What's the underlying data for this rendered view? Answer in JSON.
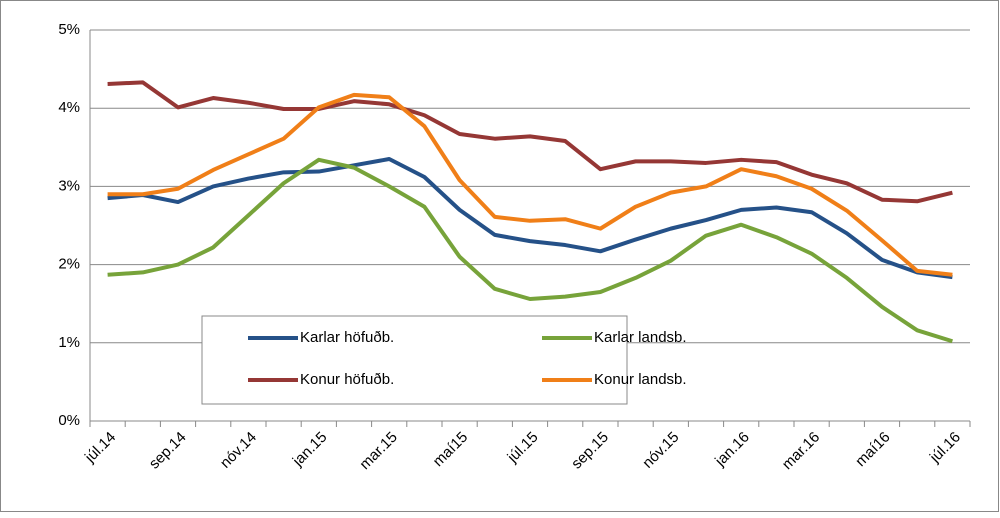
{
  "chart_data": {
    "type": "line",
    "categories": [
      "júl.14",
      null,
      "sep.14",
      null,
      "nóv.14",
      null,
      "jan.15",
      null,
      "mar.15",
      null,
      "maí15",
      null,
      "júl.15",
      null,
      "sep.15",
      null,
      "nóv.15",
      null,
      "jan.16",
      null,
      "mar.16",
      null,
      "maí16",
      null,
      "júl.16"
    ],
    "series": [
      {
        "name": "Karlar höfuðb.",
        "color": "#255188",
        "values": [
          2.85,
          2.89,
          2.8,
          3.0,
          3.1,
          3.18,
          3.19,
          3.27,
          3.35,
          3.12,
          2.7,
          2.38,
          2.3,
          2.25,
          2.17,
          2.32,
          2.46,
          2.57,
          2.7,
          2.73,
          2.67,
          2.4,
          2.06,
          1.9,
          1.84
        ]
      },
      {
        "name": "Karlar landsb.",
        "color": "#77a33a",
        "values": [
          1.87,
          1.9,
          2.0,
          2.22,
          2.63,
          3.04,
          3.34,
          3.24,
          3.0,
          2.74,
          2.1,
          1.69,
          1.56,
          1.59,
          1.65,
          1.83,
          2.05,
          2.37,
          2.51,
          2.35,
          2.14,
          1.83,
          1.46,
          1.16,
          1.02
        ]
      },
      {
        "name": "Konur höfuðb.",
        "color": "#953735",
        "values": [
          4.31,
          4.33,
          4.01,
          4.13,
          4.07,
          3.99,
          3.99,
          4.09,
          4.05,
          3.91,
          3.67,
          3.61,
          3.64,
          3.58,
          3.22,
          3.32,
          3.32,
          3.3,
          3.34,
          3.31,
          3.15,
          3.04,
          2.83,
          2.81,
          2.92
        ]
      },
      {
        "name": "Konur landsb.",
        "color": "#f07f18",
        "values": [
          2.9,
          2.9,
          2.97,
          3.21,
          3.41,
          3.61,
          4.01,
          4.17,
          4.14,
          3.77,
          3.08,
          2.61,
          2.56,
          2.58,
          2.46,
          2.74,
          2.92,
          3.0,
          3.22,
          3.13,
          2.97,
          2.69,
          2.31,
          1.92,
          1.87
        ]
      }
    ],
    "ylim": [
      0,
      5
    ],
    "yticks": [
      {
        "value": 0,
        "label": "0%"
      },
      {
        "value": 1,
        "label": "1%"
      },
      {
        "value": 2,
        "label": "2%"
      },
      {
        "value": 3,
        "label": "3%"
      },
      {
        "value": 4,
        "label": "4%"
      },
      {
        "value": 5,
        "label": "5%"
      }
    ],
    "grid": true
  }
}
